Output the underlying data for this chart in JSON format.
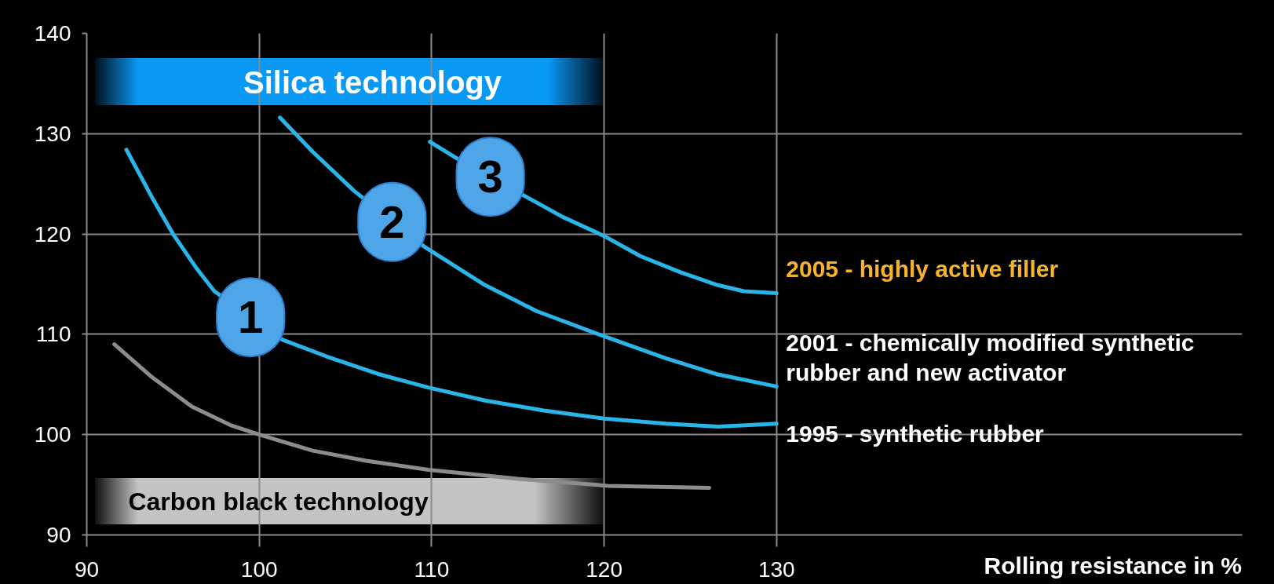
{
  "chart_data": {
    "type": "line",
    "xlabel": "Rolling resistance in %",
    "xlim": [
      90,
      157
    ],
    "xticks": [
      90,
      100,
      110,
      120,
      130
    ],
    "ylim": [
      90,
      140
    ],
    "yticks": [
      90,
      100,
      110,
      120,
      130,
      140
    ],
    "grid": true,
    "series": [
      {
        "color": "#8c8c8c",
        "x": [
          91.6,
          93.8,
          96.1,
          98.4,
          100,
          103.1,
          106.2,
          109.8,
          115,
          120.2,
          126.1
        ],
        "values": [
          109.0,
          105.7,
          102.8,
          100.9,
          100.0,
          98.4,
          97.4,
          96.5,
          95.6,
          94.9,
          94.7
        ]
      },
      {
        "name": "1995 - synthetic rubber",
        "color": "#29b5e8",
        "x": [
          92.3,
          93.8,
          95.0,
          96.4,
          97.4,
          101.3,
          103.9,
          107.0,
          109.8,
          113.1,
          116.5,
          120,
          123.6,
          126.6,
          130
        ],
        "values": [
          128.4,
          123.6,
          120.0,
          116.5,
          114.3,
          109.5,
          107.8,
          106.0,
          104.7,
          103.4,
          102.4,
          101.6,
          101.1,
          100.8,
          101.1
        ]
      },
      {
        "name": "2001 - chemically modified synthetic rubber and new activator",
        "color": "#29b5e8",
        "x": [
          101.2,
          103.1,
          105.5,
          109.6,
          113.1,
          116.1,
          120,
          123.6,
          126.6,
          130
        ],
        "values": [
          131.6,
          128.2,
          124.3,
          118.7,
          114.9,
          112.3,
          109.8,
          107.6,
          106.0,
          104.8
        ]
      },
      {
        "name": "2005 - highly active filler",
        "color": "#29b5e8",
        "x": [
          109.9,
          111.3,
          115.7,
          117.6,
          120,
          122.1,
          124.4,
          126.6,
          128.1,
          130
        ],
        "values": [
          129.2,
          127.7,
          123.5,
          121.7,
          119.8,
          117.8,
          116.2,
          114.9,
          114.3,
          114.1
        ]
      }
    ],
    "annotations": [
      "Silica technology",
      "Carbon black technology",
      {
        "text": "1",
        "x": 99.5,
        "y": 111.7
      },
      {
        "text": "2",
        "x": 107.7,
        "y": 121.2
      },
      {
        "text": "3",
        "x": 113.4,
        "y": 125.7
      }
    ]
  }
}
